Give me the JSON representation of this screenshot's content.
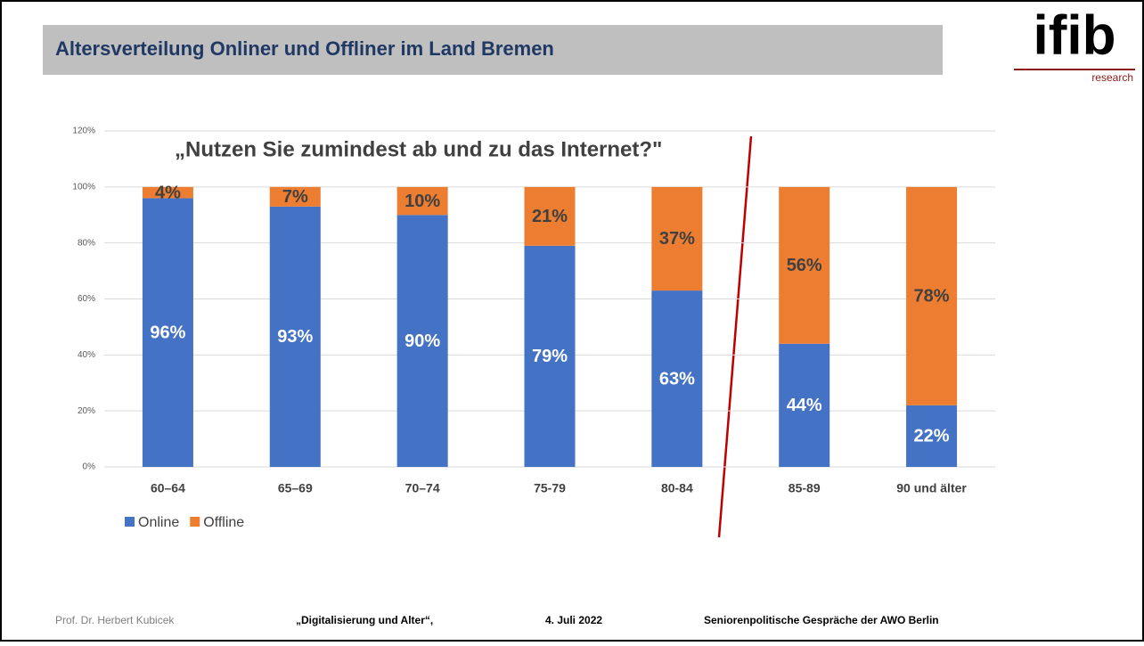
{
  "slide": {
    "title": "Altersverteilung Onliner und Offliner im Land Bremen",
    "logo": "ifib",
    "logo_sub": "research",
    "footer": [
      "Prof. Dr. Herbert Kubicek",
      "„Digitalisierung und Alter“,",
      "4. Juli 2022",
      "Seniorenpolitische Gespräche der AWO Berlin"
    ]
  },
  "chart_data": {
    "type": "stacked_bar",
    "annotation": "„Nutzen Sie zumindest ab und zu das Internet?\"",
    "categories": [
      "60–64",
      "65–69",
      "70–74",
      "75-79",
      "80-84",
      "85-89",
      "90 und älter"
    ],
    "series": [
      {
        "name": "Online",
        "color": "#4472c4",
        "label_color": "#ffffff",
        "values": [
          96,
          93,
          90,
          79,
          63,
          44,
          22
        ],
        "value_labels": [
          "96%",
          "93%",
          "90%",
          "79%",
          "63%",
          "44%",
          "22%"
        ]
      },
      {
        "name": "Offline",
        "color": "#ed7d31",
        "label_color": "#404040",
        "values": [
          4,
          7,
          10,
          21,
          37,
          56,
          78
        ],
        "value_labels": [
          "4%",
          "7%",
          "10%",
          "21%",
          "37%",
          "56%",
          "78%"
        ]
      }
    ],
    "ylim": [
      0,
      120
    ],
    "yticks": [
      {
        "value": 0,
        "label": "0%"
      },
      {
        "value": 20,
        "label": "20%"
      },
      {
        "value": 40,
        "label": "40%"
      },
      {
        "value": 60,
        "label": "60%"
      },
      {
        "value": 80,
        "label": "80%"
      },
      {
        "value": 100,
        "label": "100%"
      },
      {
        "value": 120,
        "label": "120%"
      }
    ],
    "grid": true
  }
}
